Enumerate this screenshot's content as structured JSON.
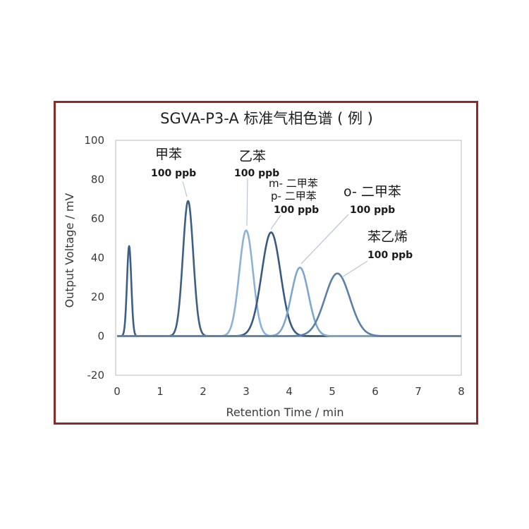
{
  "chart_data": {
    "type": "line",
    "title": "SGVA-P3-A 标准气相色谱 ( 例 )",
    "xlabel": "Retention Time / min",
    "ylabel": "Output Voltage / mV",
    "xlim": [
      0,
      8
    ],
    "ylim": [
      -20,
      100
    ],
    "x_ticks": [
      "0",
      "1",
      "2",
      "3",
      "4",
      "5",
      "6",
      "7",
      "8"
    ],
    "y_ticks": [
      "-20",
      "0",
      "20",
      "40",
      "60",
      "80",
      "100"
    ],
    "grid": false,
    "series": [
      {
        "color": "#3d5f86",
        "peaks": [
          {
            "rt": 0.28,
            "height": 46,
            "width": 0.05
          },
          {
            "rt": 1.65,
            "height": 69,
            "width": 0.12
          }
        ]
      },
      {
        "color": "#8cb3d6",
        "peaks": [
          {
            "rt": 3.0,
            "height": 54,
            "width": 0.16
          }
        ]
      },
      {
        "color": "#395a80",
        "peaks": [
          {
            "rt": 3.58,
            "height": 53,
            "width": 0.22
          }
        ]
      },
      {
        "color": "#7fa6cc",
        "peaks": [
          {
            "rt": 4.25,
            "height": 35,
            "width": 0.2
          }
        ]
      },
      {
        "color": "#5a7fa8",
        "peaks": [
          {
            "rt": 5.12,
            "height": 32,
            "width": 0.29
          }
        ]
      }
    ],
    "annotations": [
      {
        "name": "甲苯",
        "conc": "100 ppb"
      },
      {
        "name": "乙苯",
        "conc": "100 ppb"
      },
      {
        "line1": "m- 二甲苯",
        "line2": "p- 二甲苯",
        "conc": "100 ppb"
      },
      {
        "name": "o- 二甲苯",
        "conc": "100 ppb"
      },
      {
        "name": "苯乙烯",
        "conc": "100 ppb"
      }
    ]
  }
}
